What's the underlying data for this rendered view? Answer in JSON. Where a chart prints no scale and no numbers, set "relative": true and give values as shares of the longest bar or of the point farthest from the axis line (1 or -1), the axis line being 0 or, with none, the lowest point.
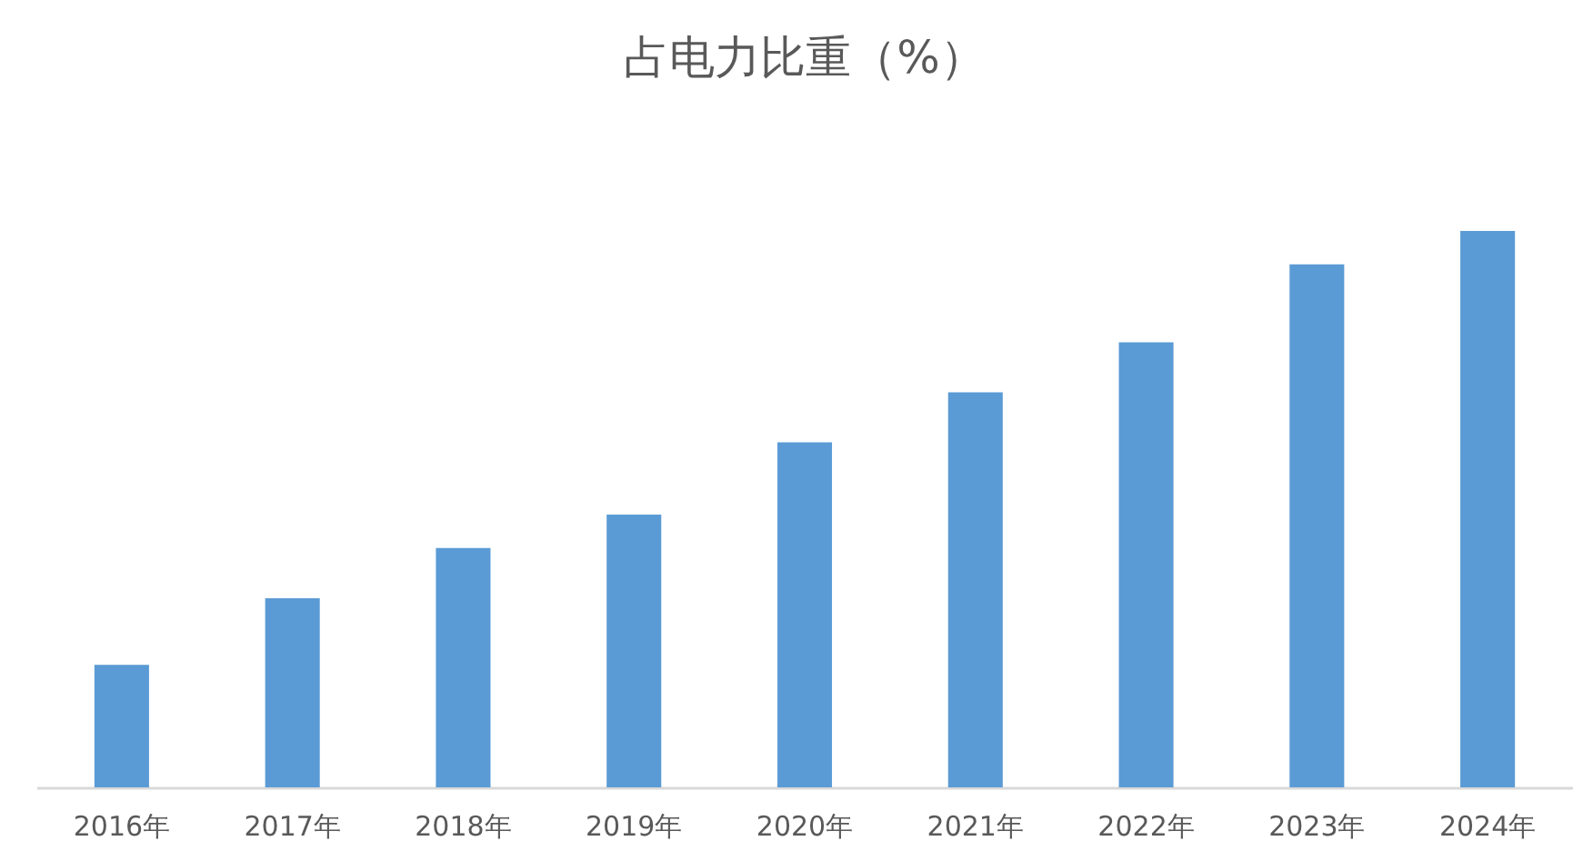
{
  "chart_data": {
    "type": "bar",
    "title": "占电力比重（%）",
    "categories": [
      "2016年",
      "2017年",
      "2018年",
      "2019年",
      "2020年",
      "2021年",
      "2022年",
      "2023年",
      "2024年"
    ],
    "values": [
      0.22,
      0.34,
      0.43,
      0.49,
      0.62,
      0.71,
      0.8,
      0.94,
      1
    ],
    "color": "#5b9bd5",
    "relative": true
  }
}
